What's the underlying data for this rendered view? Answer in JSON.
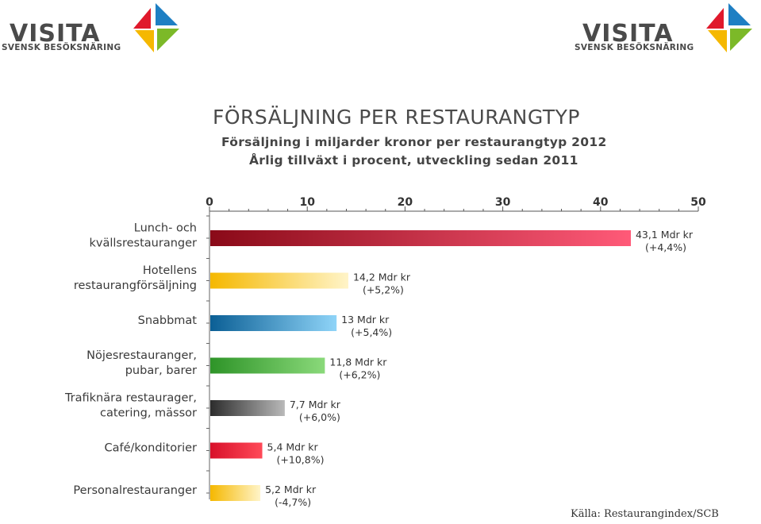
{
  "logos": [
    {
      "word": "VISITA",
      "tagline": "SVENSK BESÖKSNÄRING"
    },
    {
      "word": "VISITA",
      "tagline": "SVENSK BESÖKSNÄRING"
    }
  ],
  "colors": {
    "logo_red": "#e0192c",
    "logo_blue": "#1e7fc3",
    "logo_green": "#7cb928",
    "logo_yellow": "#f5b800"
  },
  "chart_data": {
    "type": "bar",
    "orientation": "horizontal",
    "title": "FÖRSÄLJNING PER RESTAURANGTYP",
    "subtitle_lines": [
      "Försäljning i miljarder kronor per restaurangtyp 2012",
      "Årlig tillväxt i procent, utveckling sedan 2011"
    ],
    "xlim": [
      0,
      50
    ],
    "xticks": [
      "0",
      "10",
      "20",
      "30",
      "40",
      "50"
    ],
    "axis_position": "top",
    "grid": false,
    "categories": [
      [
        "Lunch- och",
        "kvällsrestauranger"
      ],
      [
        "Hotellens",
        "restaurangförsäljning"
      ],
      [
        "Snabbmat"
      ],
      [
        "Nöjesrestauranger,",
        "pubar, barer"
      ],
      [
        "Trafiknära restaurager,",
        "catering, mässor"
      ],
      [
        "Café/konditorier"
      ],
      [
        "Personalrestauranger"
      ]
    ],
    "values": [
      43.1,
      14.2,
      13,
      11.8,
      7.7,
      5.4,
      5.2
    ],
    "value_labels": [
      "43,1 Mdr kr",
      "14,2 Mdr kr",
      "13 Mdr kr",
      "11,8 Mdr kr",
      "7,7 Mdr kr",
      "5,4 Mdr kr",
      "5,2 Mdr kr"
    ],
    "growth_labels": [
      "(+4,4%)",
      "(+5,2%)",
      "(+5,4%)",
      "(+6,2%)",
      "(+6,0%)",
      "(+10,8%)",
      "(-4,7%)"
    ],
    "bar_colors": [
      [
        "#8a0a18",
        "#ff5a78"
      ],
      [
        "#f5b800",
        "#fff4c8"
      ],
      [
        "#0b5f95",
        "#8fd4f8"
      ],
      [
        "#2e9428",
        "#8ad97a"
      ],
      [
        "#2c2c2c",
        "#b9b9b9"
      ],
      [
        "#d8102a",
        "#ff4a58"
      ],
      [
        "#f5b800",
        "#fff4c8"
      ]
    ]
  },
  "source": "Källa: Restaurangindex/SCB"
}
